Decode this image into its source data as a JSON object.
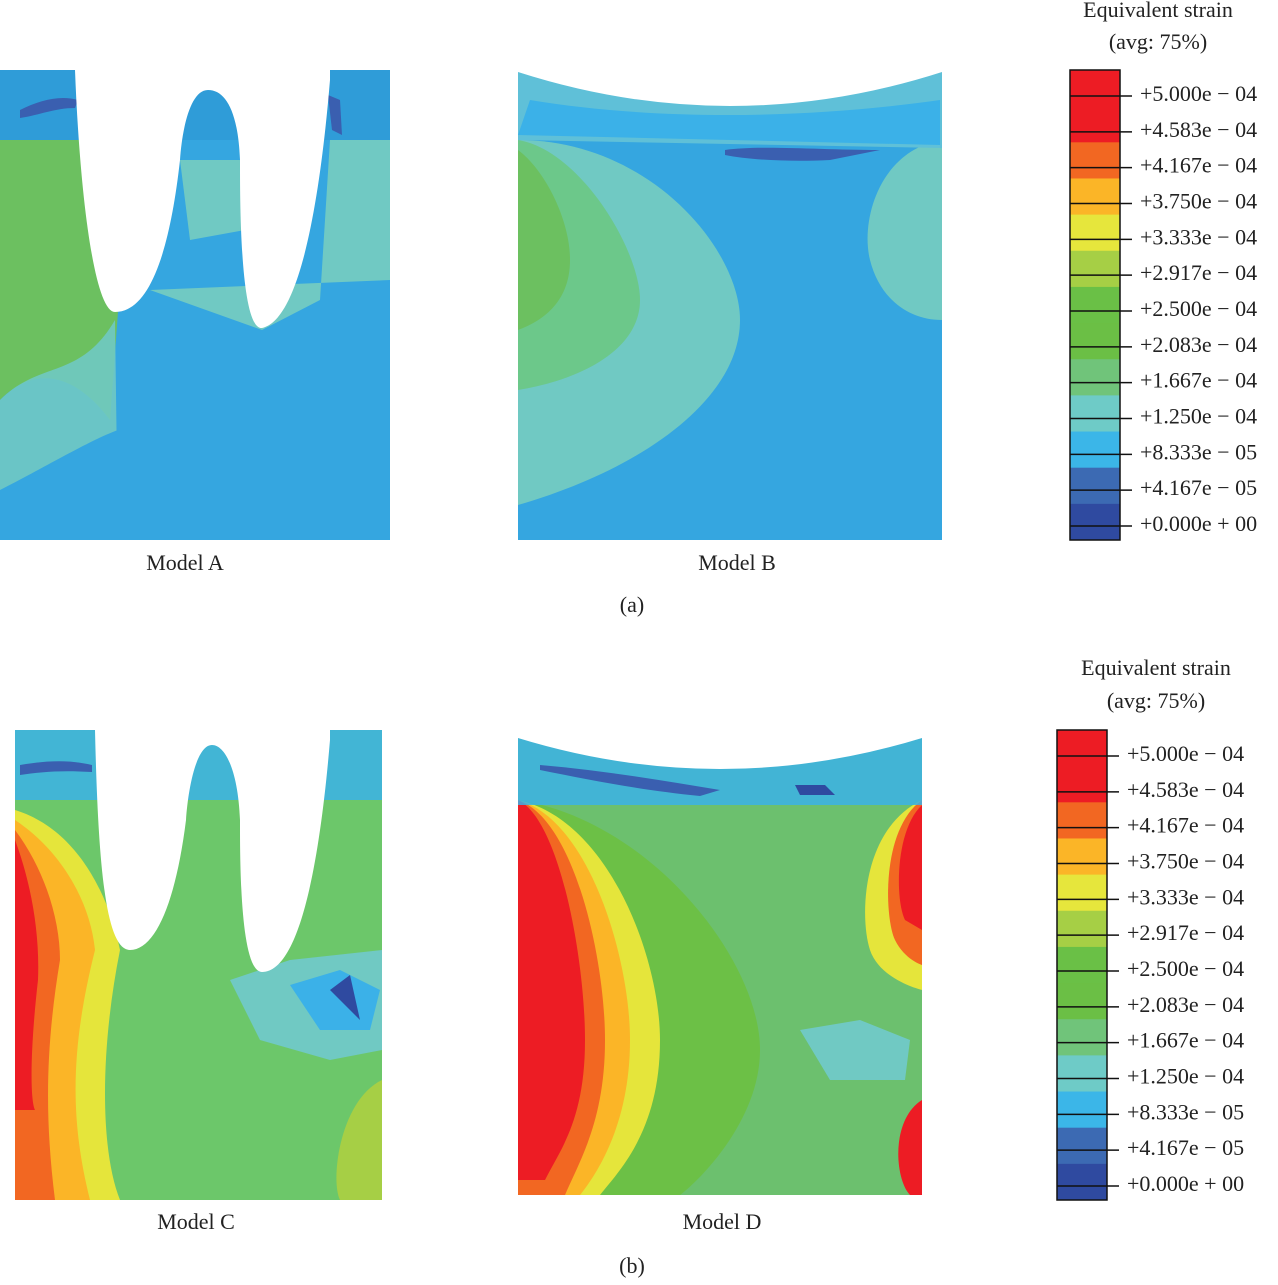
{
  "panels": [
    {
      "caption": "(a)",
      "models": [
        "Model A",
        "Model B"
      ],
      "legend": {
        "title": "Equivalent strain",
        "subtitle": "(avg: 75%)",
        "labels": [
          "+5.000e − 04",
          "+4.583e − 04",
          "+4.167e − 04",
          "+3.750e − 04",
          "+3.333e − 04",
          "+2.917e − 04",
          "+2.500e − 04",
          "+2.083e − 04",
          "+1.667e − 04",
          "+1.250e − 04",
          "+8.333e − 05",
          "+4.167e − 05",
          "+0.000e + 00"
        ]
      }
    },
    {
      "caption": "(b)",
      "models": [
        "Model C",
        "Model D"
      ],
      "legend": {
        "title": "Equivalent strain",
        "subtitle": "(avg: 75%)",
        "labels": [
          "+5.000e − 04",
          "+4.583e − 04",
          "+4.167e − 04",
          "+3.750e − 04",
          "+3.333e − 04",
          "+2.917e − 04",
          "+2.500e − 04",
          "+2.083e − 04",
          "+1.667e − 04",
          "+1.250e − 04",
          "+8.333e − 05",
          "+4.167e − 05",
          "+0.000e + 00"
        ]
      }
    }
  ]
}
